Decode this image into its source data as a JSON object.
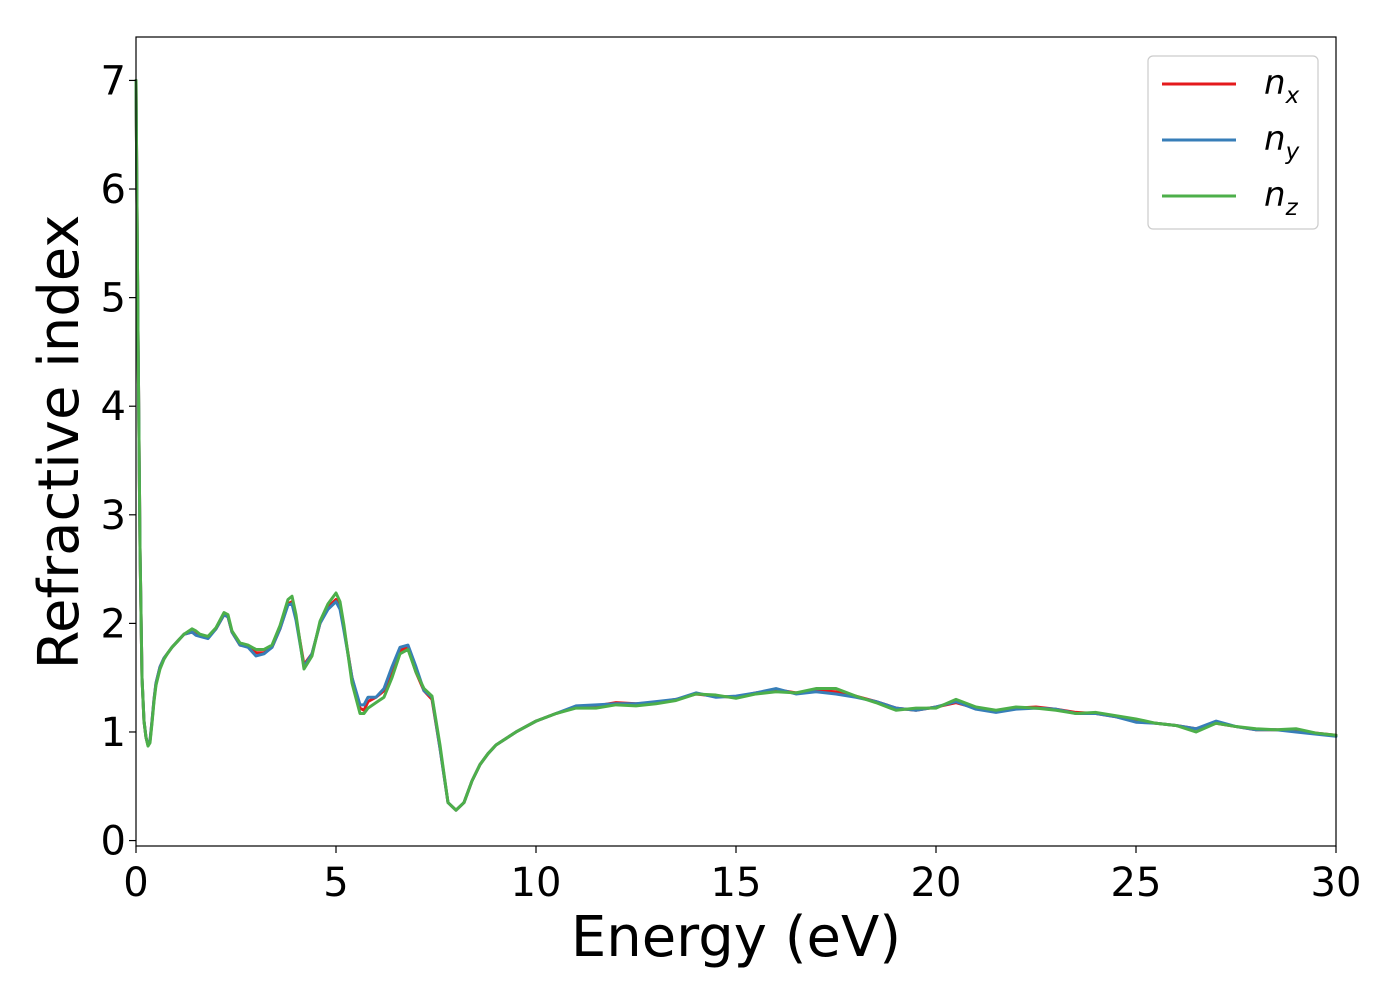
{
  "chart_data": {
    "type": "line",
    "title": "",
    "xlabel": "Energy (eV)",
    "ylabel": "Refractive index",
    "xlim": [
      0,
      30
    ],
    "ylim": [
      -0.05,
      7.4
    ],
    "xticks": [
      0,
      5,
      10,
      15,
      20,
      25,
      30
    ],
    "yticks": [
      0,
      1,
      2,
      3,
      4,
      5,
      6,
      7
    ],
    "grid": false,
    "legend_position": "top-right",
    "legend": [
      {
        "base": "n",
        "sub": "x",
        "color": "#e41a1c"
      },
      {
        "base": "n",
        "sub": "y",
        "color": "#377eb8"
      },
      {
        "base": "n",
        "sub": "z",
        "color": "#4daf4a"
      }
    ],
    "series": [
      {
        "name": "nx",
        "color": "#e41a1c",
        "x": [
          0,
          0.05,
          0.1,
          0.15,
          0.2,
          0.25,
          0.3,
          0.35,
          0.4,
          0.45,
          0.5,
          0.6,
          0.7,
          0.8,
          0.9,
          1.0,
          1.2,
          1.4,
          1.5,
          1.6,
          1.8,
          2.0,
          2.2,
          2.3,
          2.4,
          2.6,
          2.8,
          3.0,
          3.2,
          3.4,
          3.6,
          3.8,
          3.9,
          4.0,
          4.2,
          4.4,
          4.6,
          4.8,
          5.0,
          5.1,
          5.2,
          5.4,
          5.6,
          5.7,
          5.8,
          6.0,
          6.2,
          6.4,
          6.6,
          6.8,
          7.0,
          7.2,
          7.4,
          7.6,
          7.8,
          8.0,
          8.2,
          8.4,
          8.6,
          8.8,
          9.0,
          9.5,
          10.0,
          10.5,
          11.0,
          11.5,
          12.0,
          12.5,
          13.0,
          13.5,
          14.0,
          14.5,
          15.0,
          15.5,
          16.0,
          16.5,
          17.0,
          17.5,
          18.0,
          18.5,
          19.0,
          19.5,
          20.0,
          20.5,
          21.0,
          21.5,
          22.0,
          22.5,
          23.0,
          23.5,
          24.0,
          24.5,
          25.0,
          25.5,
          26.0,
          26.5,
          27.0,
          27.5,
          28.0,
          28.5,
          29.0,
          29.5,
          30.0
        ],
        "values": [
          7.0,
          4.7,
          2.7,
          1.5,
          1.1,
          0.95,
          0.88,
          0.92,
          1.1,
          1.3,
          1.45,
          1.6,
          1.68,
          1.73,
          1.78,
          1.82,
          1.9,
          1.92,
          1.9,
          1.89,
          1.87,
          1.95,
          2.08,
          2.06,
          1.92,
          1.8,
          1.79,
          1.73,
          1.73,
          1.78,
          1.95,
          2.18,
          2.2,
          2.05,
          1.62,
          1.72,
          2.0,
          2.15,
          2.22,
          2.15,
          1.95,
          1.5,
          1.22,
          1.2,
          1.28,
          1.32,
          1.38,
          1.55,
          1.75,
          1.78,
          1.55,
          1.38,
          1.3,
          0.85,
          0.35,
          0.28,
          0.35,
          0.55,
          0.7,
          0.8,
          0.88,
          1.0,
          1.1,
          1.17,
          1.23,
          1.24,
          1.27,
          1.26,
          1.27,
          1.3,
          1.35,
          1.33,
          1.32,
          1.36,
          1.39,
          1.36,
          1.38,
          1.37,
          1.33,
          1.28,
          1.22,
          1.2,
          1.23,
          1.27,
          1.22,
          1.19,
          1.22,
          1.23,
          1.21,
          1.18,
          1.17,
          1.14,
          1.1,
          1.08,
          1.06,
          1.03,
          1.08,
          1.05,
          1.02,
          1.02,
          1.01,
          0.99,
          0.97
        ]
      },
      {
        "name": "ny",
        "color": "#377eb8",
        "x": [
          0,
          0.05,
          0.1,
          0.15,
          0.2,
          0.25,
          0.3,
          0.35,
          0.4,
          0.45,
          0.5,
          0.6,
          0.7,
          0.8,
          0.9,
          1.0,
          1.2,
          1.4,
          1.5,
          1.6,
          1.8,
          2.0,
          2.2,
          2.3,
          2.4,
          2.6,
          2.8,
          3.0,
          3.2,
          3.4,
          3.6,
          3.8,
          3.9,
          4.0,
          4.2,
          4.4,
          4.6,
          4.8,
          5.0,
          5.1,
          5.2,
          5.4,
          5.6,
          5.7,
          5.8,
          6.0,
          6.2,
          6.4,
          6.6,
          6.8,
          7.0,
          7.2,
          7.4,
          7.6,
          7.8,
          8.0,
          8.2,
          8.4,
          8.6,
          8.8,
          9.0,
          9.5,
          10.0,
          10.5,
          11.0,
          11.5,
          12.0,
          12.5,
          13.0,
          13.5,
          14.0,
          14.5,
          15.0,
          15.5,
          16.0,
          16.5,
          17.0,
          17.5,
          18.0,
          18.5,
          19.0,
          19.5,
          20.0,
          20.5,
          21.0,
          21.5,
          22.0,
          22.5,
          23.0,
          23.5,
          24.0,
          24.5,
          25.0,
          25.5,
          26.0,
          26.5,
          27.0,
          27.5,
          28.0,
          28.5,
          29.0,
          29.5,
          30.0
        ],
        "values": [
          7.0,
          4.7,
          2.7,
          1.5,
          1.1,
          0.95,
          0.88,
          0.92,
          1.1,
          1.3,
          1.45,
          1.6,
          1.68,
          1.73,
          1.78,
          1.82,
          1.9,
          1.92,
          1.89,
          1.88,
          1.86,
          1.95,
          2.08,
          2.06,
          1.92,
          1.8,
          1.78,
          1.7,
          1.72,
          1.78,
          1.95,
          2.17,
          2.18,
          2.03,
          1.6,
          1.72,
          2.0,
          2.13,
          2.2,
          2.13,
          1.93,
          1.5,
          1.25,
          1.25,
          1.32,
          1.32,
          1.4,
          1.6,
          1.78,
          1.8,
          1.6,
          1.38,
          1.32,
          0.85,
          0.35,
          0.28,
          0.35,
          0.55,
          0.7,
          0.8,
          0.88,
          1.0,
          1.1,
          1.17,
          1.24,
          1.25,
          1.26,
          1.26,
          1.28,
          1.3,
          1.36,
          1.32,
          1.33,
          1.36,
          1.4,
          1.35,
          1.37,
          1.35,
          1.32,
          1.28,
          1.22,
          1.2,
          1.23,
          1.28,
          1.21,
          1.18,
          1.21,
          1.22,
          1.21,
          1.17,
          1.17,
          1.14,
          1.09,
          1.08,
          1.06,
          1.03,
          1.1,
          1.05,
          1.02,
          1.02,
          1.0,
          0.98,
          0.96
        ]
      },
      {
        "name": "nz",
        "color": "#4daf4a",
        "x": [
          0,
          0.05,
          0.1,
          0.15,
          0.2,
          0.25,
          0.3,
          0.35,
          0.4,
          0.45,
          0.5,
          0.6,
          0.7,
          0.8,
          0.9,
          1.0,
          1.2,
          1.4,
          1.5,
          1.6,
          1.8,
          2.0,
          2.2,
          2.3,
          2.4,
          2.6,
          2.8,
          3.0,
          3.2,
          3.4,
          3.6,
          3.8,
          3.9,
          4.0,
          4.2,
          4.4,
          4.6,
          4.8,
          5.0,
          5.1,
          5.2,
          5.4,
          5.6,
          5.7,
          5.8,
          6.0,
          6.2,
          6.4,
          6.6,
          6.8,
          7.0,
          7.2,
          7.4,
          7.6,
          7.8,
          8.0,
          8.2,
          8.4,
          8.6,
          8.8,
          9.0,
          9.5,
          10.0,
          10.5,
          11.0,
          11.5,
          12.0,
          12.5,
          13.0,
          13.5,
          14.0,
          14.5,
          15.0,
          15.5,
          16.0,
          16.5,
          17.0,
          17.5,
          18.0,
          18.5,
          19.0,
          19.5,
          20.0,
          20.5,
          21.0,
          21.5,
          22.0,
          22.5,
          23.0,
          23.5,
          24.0,
          24.5,
          25.0,
          25.5,
          26.0,
          26.5,
          27.0,
          27.5,
          28.0,
          28.5,
          29.0,
          29.5,
          30.0
        ],
        "values": [
          7.0,
          4.7,
          2.7,
          1.5,
          1.1,
          0.95,
          0.87,
          0.9,
          1.08,
          1.28,
          1.43,
          1.58,
          1.67,
          1.73,
          1.78,
          1.82,
          1.9,
          1.95,
          1.93,
          1.9,
          1.88,
          1.96,
          2.1,
          2.08,
          1.93,
          1.82,
          1.8,
          1.76,
          1.76,
          1.8,
          1.98,
          2.22,
          2.25,
          2.08,
          1.58,
          1.7,
          2.02,
          2.18,
          2.28,
          2.2,
          1.98,
          1.45,
          1.17,
          1.17,
          1.22,
          1.27,
          1.32,
          1.5,
          1.72,
          1.76,
          1.55,
          1.4,
          1.33,
          0.88,
          0.35,
          0.28,
          0.35,
          0.55,
          0.7,
          0.8,
          0.88,
          1.0,
          1.1,
          1.17,
          1.22,
          1.22,
          1.25,
          1.24,
          1.26,
          1.29,
          1.35,
          1.34,
          1.31,
          1.35,
          1.37,
          1.36,
          1.4,
          1.4,
          1.33,
          1.27,
          1.2,
          1.22,
          1.22,
          1.3,
          1.23,
          1.2,
          1.23,
          1.22,
          1.2,
          1.17,
          1.18,
          1.15,
          1.12,
          1.08,
          1.06,
          1.0,
          1.08,
          1.05,
          1.03,
          1.02,
          1.03,
          0.99,
          0.97
        ]
      }
    ]
  }
}
